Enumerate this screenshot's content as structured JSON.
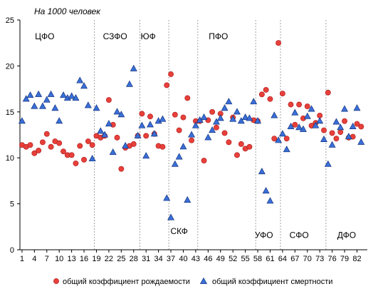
{
  "chart_data": {
    "type": "scatter",
    "unit_label": "На 1000 человек",
    "x_range": [
      1,
      84
    ],
    "y_range": [
      0,
      25
    ],
    "y_ticks": [
      "0",
      "5",
      "10",
      "15",
      "20",
      "25"
    ],
    "x_ticks": [
      "1",
      "4",
      "7",
      "10",
      "13",
      "16",
      "19",
      "22",
      "25",
      "28",
      "31",
      "34",
      "37",
      "40",
      "43",
      "46",
      "49",
      "52",
      "55",
      "58",
      "61",
      "64",
      "67",
      "70",
      "73",
      "76",
      "79",
      "82"
    ],
    "x_tick_values": [
      1,
      4,
      7,
      10,
      13,
      16,
      19,
      22,
      25,
      28,
      31,
      34,
      37,
      40,
      43,
      46,
      49,
      52,
      55,
      58,
      61,
      64,
      67,
      70,
      73,
      76,
      79,
      82
    ],
    "districts": [
      {
        "label": "ЦФО",
        "label_x": 6.5,
        "label_y": 23.2,
        "boundary": 18.5
      },
      {
        "label": "СЗФО",
        "label_x": 23.5,
        "label_y": 23.2,
        "boundary": 29.5
      },
      {
        "label": "ЮФ",
        "label_x": 31.5,
        "label_y": 23.2,
        "boundary": 36.5
      },
      {
        "label": "СКФ",
        "label_x": 39,
        "label_y": 2.0,
        "boundary": 43.5
      },
      {
        "label": "ПФО",
        "label_x": 48.5,
        "label_y": 23.2,
        "boundary": 57.5
      },
      {
        "label": "УФО",
        "label_x": 59.5,
        "label_y": 1.6,
        "boundary": 63.5
      },
      {
        "label": "СФО",
        "label_x": 68,
        "label_y": 1.6,
        "boundary": 74.5
      },
      {
        "label": "ДФО",
        "label_x": 79.5,
        "label_y": 1.6,
        "boundary": null
      }
    ],
    "series": [
      {
        "name": "общий коэффициент рождаемости",
        "marker": "circle",
        "color": "#e8403a",
        "stroke": "#b02020",
        "x": [
          1,
          2,
          3,
          4,
          5,
          6,
          7,
          8,
          9,
          10,
          11,
          12,
          13,
          14,
          15,
          16,
          17,
          18,
          19,
          20,
          21,
          22,
          23,
          24,
          25,
          26,
          27,
          28,
          29,
          30,
          31,
          32,
          33,
          34,
          35,
          36,
          37,
          38,
          39,
          40,
          41,
          42,
          43,
          44,
          45,
          46,
          47,
          48,
          49,
          50,
          51,
          52,
          53,
          54,
          55,
          56,
          57,
          58,
          59,
          60,
          61,
          62,
          63,
          64,
          65,
          66,
          67,
          68,
          69,
          70,
          71,
          72,
          73,
          74,
          75,
          76,
          77,
          78,
          79,
          80,
          81,
          82,
          83
        ],
        "y": [
          11.4,
          11.2,
          11.4,
          10.5,
          10.8,
          11.7,
          12.6,
          11.2,
          11.8,
          11.6,
          10.7,
          10.3,
          10.3,
          9.4,
          11.3,
          9.8,
          11.8,
          11.4,
          12.4,
          12.2,
          12.4,
          16.3,
          13.6,
          12.2,
          8.8,
          11.1,
          11.3,
          11.5,
          12.4,
          14.8,
          12.4,
          14.5,
          12.6,
          11.3,
          11.2,
          17.9,
          19.1,
          14.7,
          13.0,
          14.4,
          16.5,
          11.9,
          14.0,
          14.0,
          9.7,
          14.1,
          15.0,
          13.3,
          14.8,
          12.7,
          11.7,
          14.4,
          10.3,
          11.5,
          11.0,
          11.2,
          14.1,
          14.0,
          16.9,
          17.4,
          16.4,
          12.1,
          22.5,
          17.0,
          12.1,
          15.8,
          13.6,
          15.8,
          14.3,
          15.6,
          13.5,
          13.8,
          14.6,
          13.0,
          17.1,
          12.7,
          12.1,
          12.8,
          14.0,
          12.2,
          12.3,
          13.7,
          13.4
        ]
      },
      {
        "name": "общий коэффициент смертности",
        "marker": "triangle",
        "color": "#3a6fd8",
        "stroke": "#16357e",
        "x": [
          1,
          2,
          3,
          4,
          5,
          6,
          7,
          8,
          9,
          10,
          11,
          12,
          13,
          14,
          15,
          16,
          17,
          18,
          19,
          20,
          21,
          22,
          23,
          24,
          25,
          26,
          27,
          28,
          29,
          30,
          31,
          32,
          33,
          34,
          35,
          36,
          37,
          38,
          39,
          40,
          41,
          42,
          43,
          44,
          45,
          46,
          47,
          48,
          49,
          50,
          51,
          52,
          53,
          54,
          55,
          56,
          57,
          58,
          59,
          60,
          61,
          62,
          63,
          64,
          65,
          66,
          67,
          68,
          69,
          70,
          71,
          72,
          73,
          74,
          75,
          76,
          77,
          78,
          79,
          80,
          81,
          82,
          83
        ],
        "y": [
          14.0,
          16.4,
          16.8,
          15.6,
          16.9,
          15.6,
          16.3,
          16.9,
          15.4,
          14.0,
          16.8,
          16.5,
          16.7,
          16.5,
          18.4,
          17.8,
          15.7,
          9.9,
          15.4,
          12.9,
          12.5,
          13.7,
          10.6,
          15.0,
          14.7,
          11.3,
          18.0,
          19.7,
          12.4,
          13.5,
          10.2,
          13.6,
          12.6,
          14.0,
          14.2,
          5.6,
          3.5,
          9.3,
          10.1,
          11.2,
          5.4,
          12.5,
          13.5,
          14.1,
          14.4,
          12.2,
          13.0,
          13.9,
          14.3,
          15.4,
          16.1,
          14.2,
          15.0,
          14.0,
          14.4,
          14.3,
          16.1,
          14.0,
          8.5,
          6.4,
          5.3,
          14.6,
          11.9,
          12.6,
          10.9,
          13.4,
          14.9,
          13.3,
          13.1,
          14.5,
          15.3,
          13.5,
          14.0,
          12.0,
          9.3,
          11.4,
          13.9,
          13.3,
          15.3,
          12.3,
          13.4,
          15.4,
          11.7
        ]
      }
    ],
    "legend_position": "bottom",
    "grid": false
  }
}
